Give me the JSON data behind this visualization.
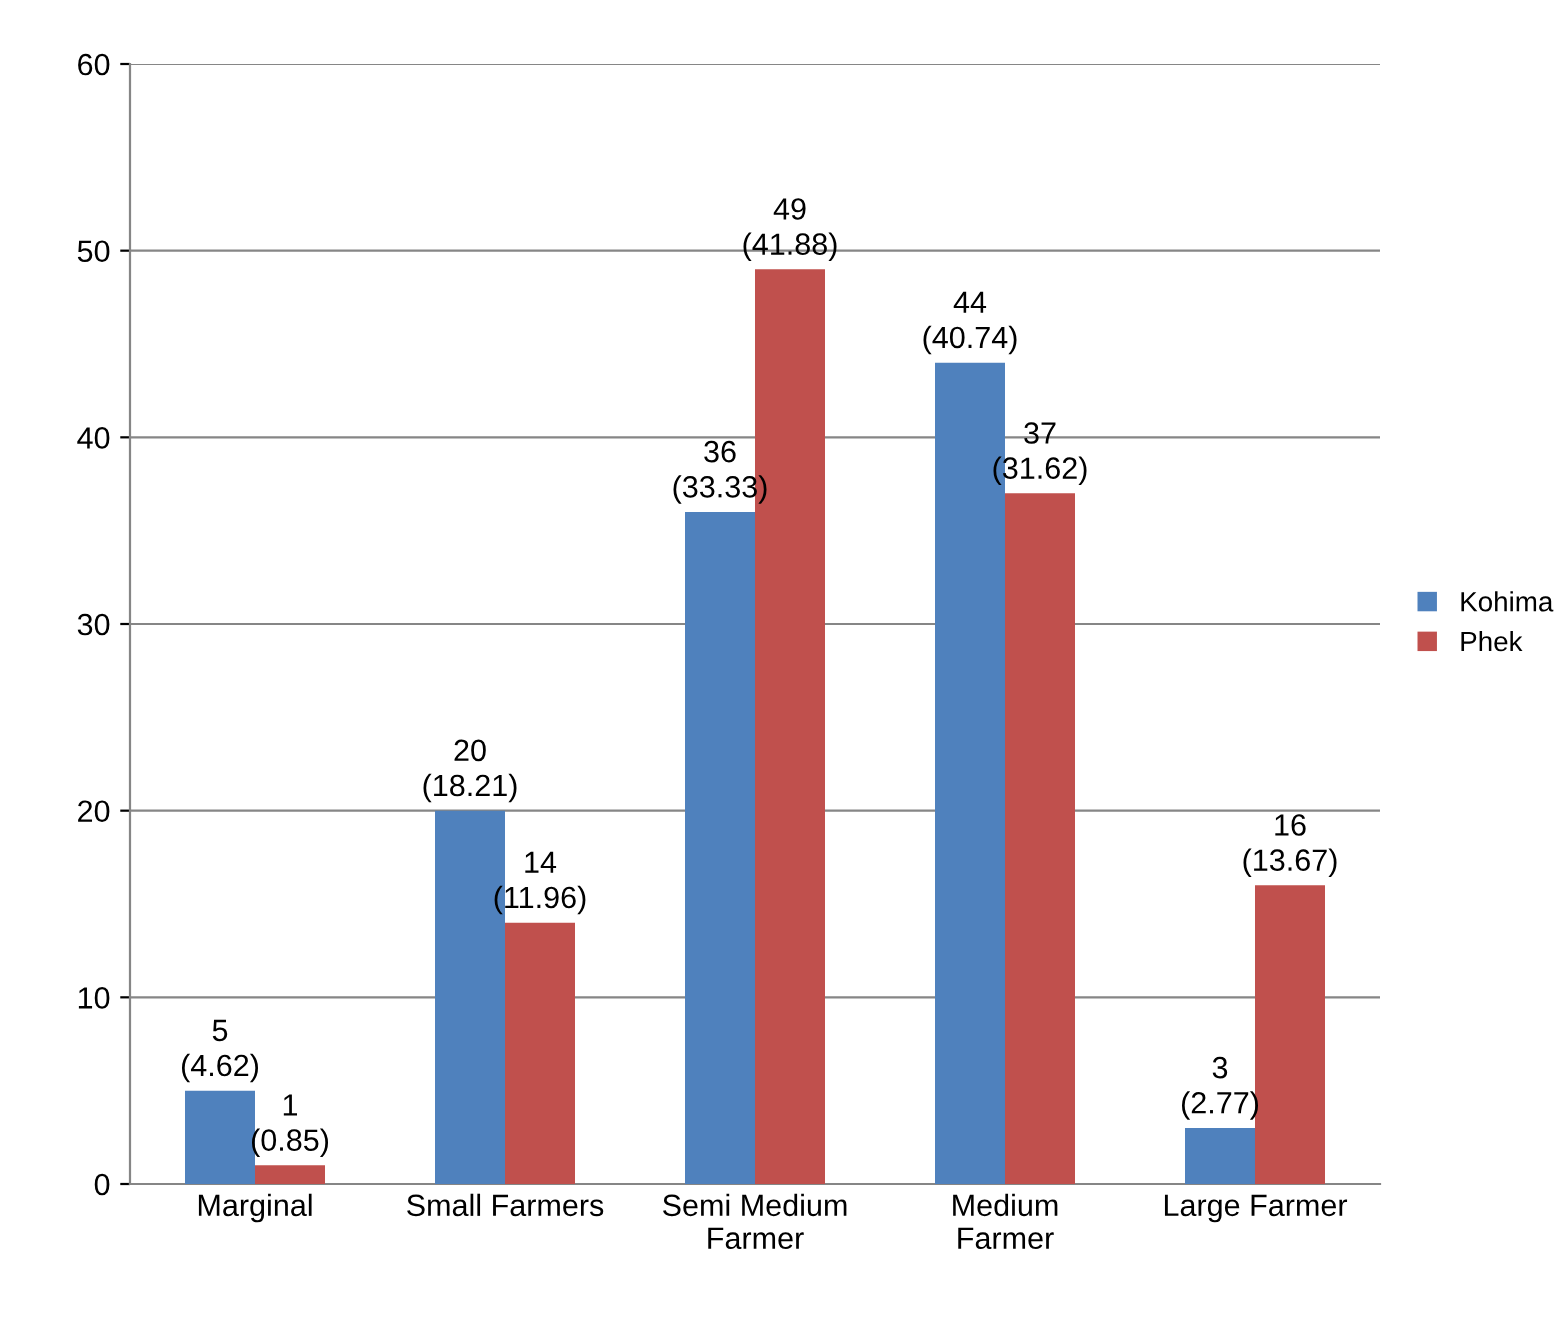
{
  "chart_data": {
    "type": "bar",
    "categories": [
      "Marginal",
      "Small Farmers",
      "Semi Medium\nFarmer",
      "Medium\nFarmer",
      "Large Farmer"
    ],
    "series": [
      {
        "name": "Kohima",
        "color": "#4f81bd",
        "values": [
          5,
          20,
          36,
          44,
          3
        ],
        "value_labels": [
          "5\n(4.62)",
          "20\n(18.21)",
          "36\n(33.33)",
          "44\n(40.74)",
          "3\n(2.77)"
        ]
      },
      {
        "name": "Phek",
        "color": "#c0504d",
        "values": [
          1,
          14,
          49,
          37,
          16
        ],
        "value_labels": [
          "1\n(0.85)",
          "14\n(11.96)",
          "49\n(41.88)",
          "37\n(31.62)",
          "16\n(13.67)"
        ]
      }
    ],
    "ylim": [
      0,
      60
    ],
    "yticks": [
      0,
      10,
      20,
      30,
      40,
      50,
      60
    ],
    "grid": "y",
    "legend": "right"
  }
}
